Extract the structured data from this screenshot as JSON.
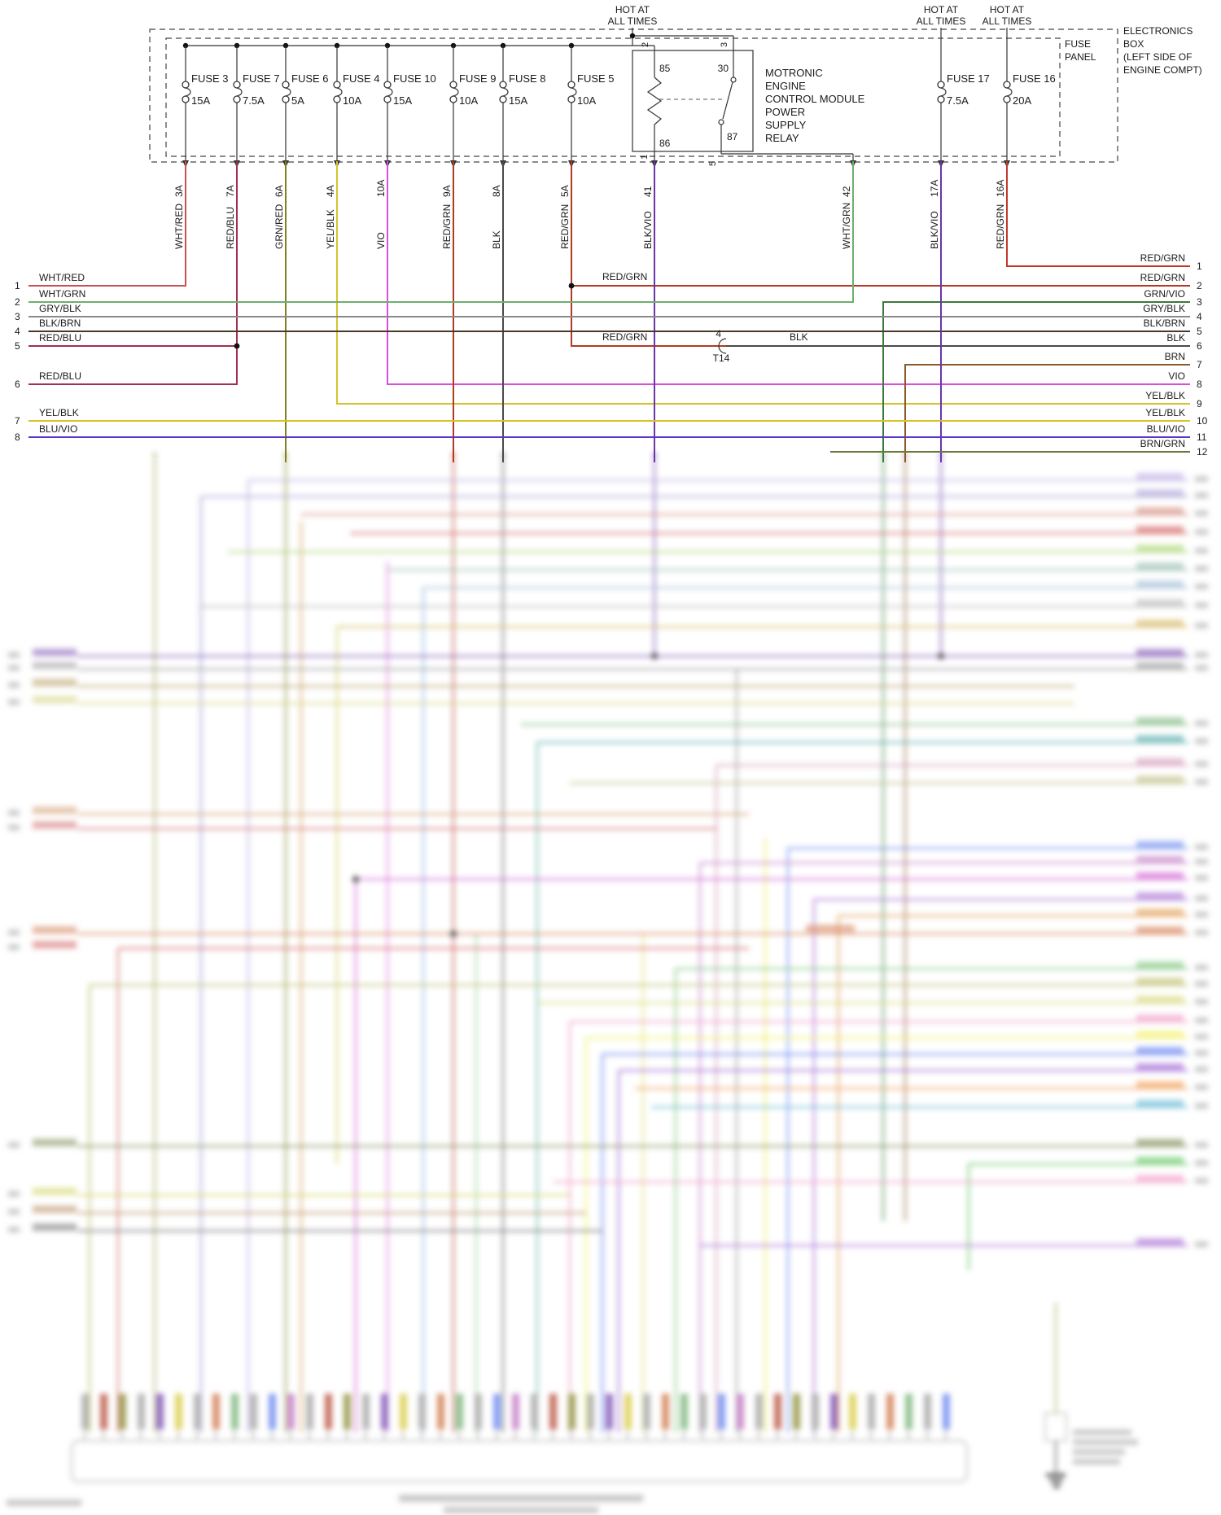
{
  "hot_label": {
    "line1": "HOT AT",
    "line2": "ALL TIMES"
  },
  "panel": {
    "fuse_panel": [
      "FUSE",
      "PANEL"
    ],
    "electronics_box": [
      "ELECTRONICS",
      "BOX",
      "(LEFT SIDE OF",
      "ENGINE COMPT)"
    ]
  },
  "relay": {
    "name_lines": [
      "MOTRONIC",
      "ENGINE",
      "CONTROL MODULE",
      "POWER",
      "SUPPLY",
      "RELAY"
    ],
    "pins": {
      "p85": "85",
      "p30": "30",
      "p86": "86",
      "p87": "87"
    },
    "terminals": {
      "t2": "2",
      "t3": "3",
      "t1": "1",
      "t5": "5"
    }
  },
  "fuses": [
    {
      "name": "FUSE 3",
      "amp": "15A"
    },
    {
      "name": "FUSE 7",
      "amp": "7.5A"
    },
    {
      "name": "FUSE 6",
      "amp": "5A"
    },
    {
      "name": "FUSE 4",
      "amp": "10A"
    },
    {
      "name": "FUSE 10",
      "amp": "15A"
    },
    {
      "name": "FUSE 9",
      "amp": "10A"
    },
    {
      "name": "FUSE 8",
      "amp": "15A"
    },
    {
      "name": "FUSE 5",
      "amp": "10A"
    },
    {
      "name": "FUSE 17",
      "amp": "7.5A"
    },
    {
      "name": "FUSE 16",
      "amp": "20A"
    }
  ],
  "drops": [
    {
      "label": "WHT/RED",
      "circuit": "3A"
    },
    {
      "label": "RED/BLU",
      "circuit": "7A"
    },
    {
      "label": "GRN/RED",
      "circuit": "6A"
    },
    {
      "label": "YEL/BLK",
      "circuit": "4A"
    },
    {
      "label": "VIO",
      "circuit": "10A"
    },
    {
      "label": "RED/GRN",
      "circuit": "9A"
    },
    {
      "label": "BLK",
      "circuit": "8A"
    },
    {
      "label": "RED/GRN",
      "circuit": "5A"
    },
    {
      "label": "BLK/VIO",
      "circuit": "41"
    },
    {
      "label": "WHT/GRN",
      "circuit": "42"
    },
    {
      "label": "BLK/VIO",
      "circuit": "17A"
    },
    {
      "label": "RED/GRN",
      "circuit": "16A"
    }
  ],
  "left_rows": [
    {
      "num": "1",
      "label": "WHT/RED"
    },
    {
      "num": "2",
      "label": "WHT/GRN"
    },
    {
      "num": "3",
      "label": "GRY/BLK"
    },
    {
      "num": "4",
      "label": "BLK/BRN"
    },
    {
      "num": "5",
      "label": "RED/BLU"
    },
    {
      "num": "6",
      "label": "RED/BLU"
    },
    {
      "num": "7",
      "label": "YEL/BLK"
    },
    {
      "num": "8",
      "label": "BLU/VIO"
    }
  ],
  "right_rows": [
    {
      "num": "1",
      "label": "RED/GRN"
    },
    {
      "num": "2",
      "label": "RED/GRN"
    },
    {
      "num": "3",
      "label": "GRN/VIO"
    },
    {
      "num": "4",
      "label": "GRY/BLK"
    },
    {
      "num": "5",
      "label": "BLK/BRN"
    },
    {
      "num": "6",
      "label": "BLK"
    },
    {
      "num": "7",
      "label": "BRN"
    },
    {
      "num": "8",
      "label": "VIO"
    },
    {
      "num": "9",
      "label": "YEL/BLK"
    },
    {
      "num": "10",
      "label": "YEL/BLK"
    },
    {
      "num": "11",
      "label": "BLU/VIO"
    },
    {
      "num": "12",
      "label": "BRN/GRN"
    }
  ],
  "mid_labels": {
    "red_grn_a": "RED/GRN",
    "red_grn_b": "RED/GRN",
    "blk": "BLK",
    "t14_pin": "4",
    "t14_name": "T14"
  },
  "wire_colors": {
    "WHT/RED": "#c85050",
    "RED/BLU": "#a03050",
    "GRN/RED": "#808020",
    "YEL/BLK": "#d4c42a",
    "VIO": "#d94fd9",
    "RED/GRN": "#b03a22",
    "RED/GRN_BRIGHT": "#c0392b",
    "BLK": "#4a4a4a",
    "BLK/VIO": "#6a35a8",
    "WHT/GRN": "#6fae6f",
    "GRN/VIO": "#3a7a3a",
    "GRY/BLK": "#8a8a8a",
    "BLK/BRN": "#4a3828",
    "BRN": "#8a5a2a",
    "BLU/VIO": "#5b35c8",
    "BRN/GRN": "#6a7a3a"
  }
}
